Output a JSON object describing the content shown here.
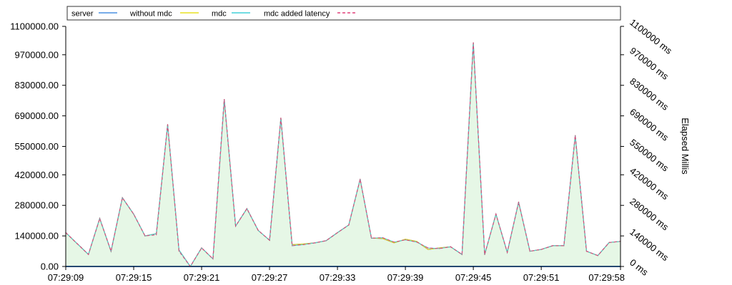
{
  "chart_data": {
    "type": "line",
    "title": "",
    "xlabel": "",
    "ylabel": "",
    "y2label": "Elapsed Millis",
    "x": [
      "07:29:09",
      "07:29:10",
      "07:29:11",
      "07:29:12",
      "07:29:13",
      "07:29:14",
      "07:29:15",
      "07:29:16",
      "07:29:17",
      "07:29:18",
      "07:29:19",
      "07:29:20",
      "07:29:21",
      "07:29:22",
      "07:29:23",
      "07:29:24",
      "07:29:25",
      "07:29:26",
      "07:29:27",
      "07:29:28",
      "07:29:29",
      "07:29:30",
      "07:29:31",
      "07:29:32",
      "07:29:33",
      "07:29:34",
      "07:29:35",
      "07:29:36",
      "07:29:37",
      "07:29:38",
      "07:29:39",
      "07:29:40",
      "07:29:41",
      "07:29:42",
      "07:29:43",
      "07:29:44",
      "07:29:45",
      "07:29:46",
      "07:29:47",
      "07:29:48",
      "07:29:49",
      "07:29:50",
      "07:29:51",
      "07:29:52",
      "07:29:53",
      "07:29:54",
      "07:29:55",
      "07:29:56",
      "07:29:57",
      "07:29:58"
    ],
    "x_tick_labels": [
      "07:29:09",
      "07:29:15",
      "07:29:21",
      "07:29:27",
      "07:29:33",
      "07:29:39",
      "07:29:45",
      "07:29:51",
      "07:29:58"
    ],
    "ylim": [
      0,
      1100000
    ],
    "y_tick_labels": [
      "0.00",
      "140000.00",
      "280000.00",
      "420000.00",
      "550000.00",
      "690000.00",
      "830000.00",
      "970000.00",
      "1100000.00"
    ],
    "y_tick_values": [
      0,
      140000,
      280000,
      420000,
      550000,
      690000,
      830000,
      970000,
      1100000
    ],
    "y2_tick_labels": [
      "0 ms",
      "140000 ms",
      "280000 ms",
      "420000 ms",
      "550000 ms",
      "690000 ms",
      "830000 ms",
      "970000 ms",
      "1100000 ms"
    ],
    "grid": false,
    "legend_position": "top",
    "series": [
      {
        "name": "server",
        "color": "#4a90e2",
        "style": "solid",
        "values": [
          0,
          0,
          0,
          0,
          0,
          0,
          0,
          0,
          0,
          0,
          0,
          0,
          0,
          0,
          0,
          0,
          0,
          0,
          0,
          0,
          0,
          0,
          0,
          0,
          0,
          0,
          0,
          0,
          0,
          0,
          0,
          0,
          0,
          0,
          0,
          0,
          0,
          0,
          0,
          0,
          0,
          0,
          0,
          0,
          0,
          0,
          0,
          0,
          0,
          0
        ]
      },
      {
        "name": "without mdc",
        "color": "#e8e020",
        "style": "solid",
        "values": [
          155000,
          105000,
          55000,
          220000,
          70000,
          315000,
          240000,
          140000,
          150000,
          650000,
          75000,
          0,
          85000,
          35000,
          765000,
          185000,
          265000,
          165000,
          120000,
          680000,
          100000,
          103000,
          108000,
          118000,
          155000,
          190000,
          400000,
          130000,
          128000,
          108000,
          125000,
          115000,
          78000,
          85000,
          90000,
          55000,
          1025000,
          55000,
          240000,
          65000,
          295000,
          70000,
          78000,
          95000,
          95000,
          600000,
          70000,
          50000,
          110000,
          115000
        ]
      },
      {
        "name": "mdc",
        "color": "#40d0d8",
        "style": "solid",
        "values": [
          155000,
          105000,
          55000,
          220000,
          70000,
          315000,
          240000,
          140000,
          150000,
          650000,
          75000,
          0,
          85000,
          35000,
          765000,
          185000,
          265000,
          165000,
          120000,
          680000,
          95000,
          100000,
          108000,
          118000,
          155000,
          190000,
          400000,
          130000,
          132000,
          112000,
          122000,
          112000,
          85000,
          82000,
          90000,
          55000,
          1025000,
          55000,
          240000,
          65000,
          295000,
          70000,
          78000,
          95000,
          95000,
          600000,
          70000,
          50000,
          110000,
          115000
        ]
      },
      {
        "name": "mdc added latency",
        "color": "#e0407a",
        "style": "dashed",
        "values": [
          155000,
          105000,
          55000,
          220000,
          70000,
          315000,
          240000,
          140000,
          145000,
          650000,
          70000,
          0,
          85000,
          35000,
          765000,
          185000,
          265000,
          165000,
          120000,
          680000,
          95000,
          100000,
          108000,
          118000,
          155000,
          190000,
          400000,
          130000,
          132000,
          112000,
          122000,
          112000,
          85000,
          82000,
          90000,
          55000,
          1025000,
          55000,
          240000,
          65000,
          295000,
          70000,
          78000,
          95000,
          95000,
          600000,
          70000,
          50000,
          110000,
          115000
        ]
      }
    ],
    "area_fill_color": "#e6f7e6",
    "dark_line_color": "#5a4a7a"
  }
}
